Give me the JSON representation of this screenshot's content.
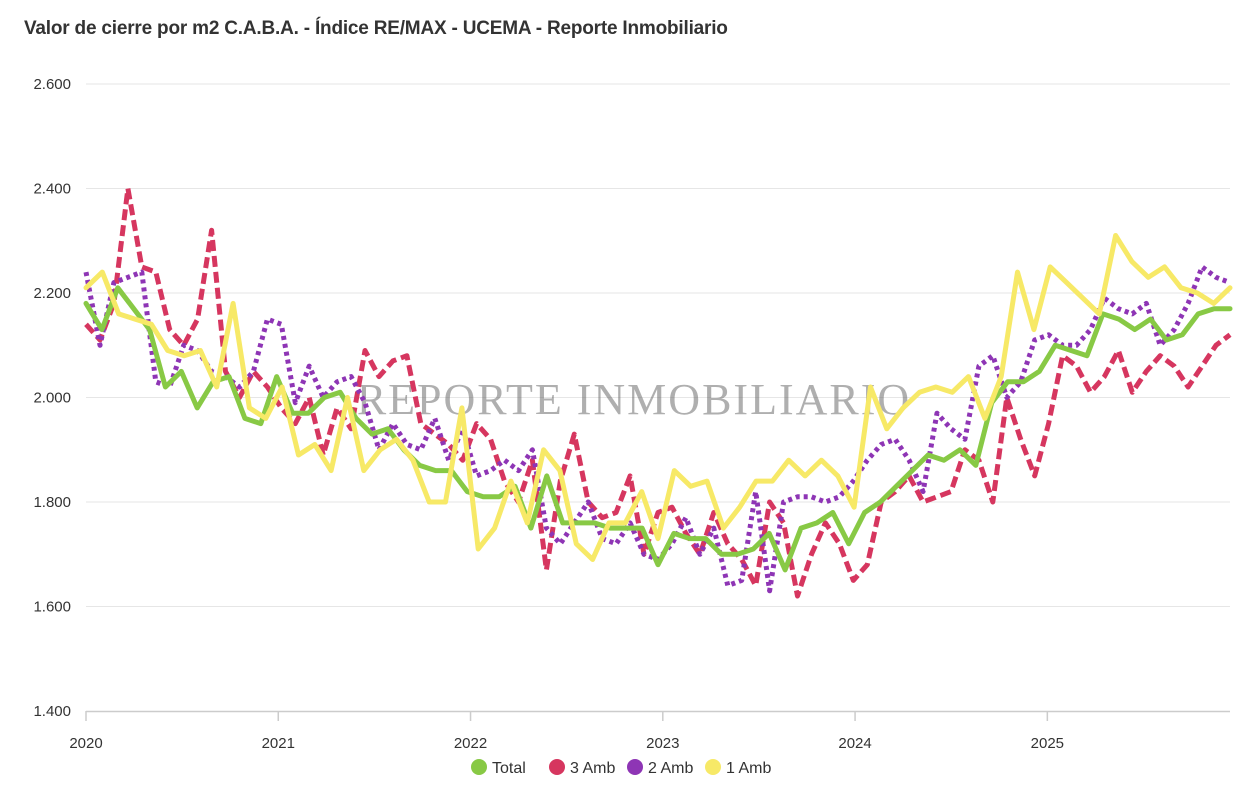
{
  "chart_data": {
    "type": "line",
    "title": "Valor de cierre por m2 C.A.B.A. - Índice RE/MAX - UCEMA - Reporte Inmobiliario",
    "watermark": "REPORTE INMOBILIARIO",
    "xlabel": "",
    "ylabel": "",
    "xlim": [
      2020,
      2025.95
    ],
    "ylim": [
      1400,
      2600
    ],
    "yticks": [
      {
        "value": 1400,
        "label": "1.400"
      },
      {
        "value": 1600,
        "label": "1.600"
      },
      {
        "value": 1800,
        "label": "1.800"
      },
      {
        "value": 2000,
        "label": "2.000"
      },
      {
        "value": 2200,
        "label": "2.200"
      },
      {
        "value": 2400,
        "label": "2.400"
      },
      {
        "value": 2600,
        "label": "2.600"
      }
    ],
    "xticks": [
      {
        "value": 2020,
        "label": "2020"
      },
      {
        "value": 2021,
        "label": "2021"
      },
      {
        "value": 2022,
        "label": "2022"
      },
      {
        "value": 2023,
        "label": "2023"
      },
      {
        "value": 2024,
        "label": "2024"
      },
      {
        "value": 2025,
        "label": "2025"
      }
    ],
    "grid": true,
    "legend_position": "bottom-center",
    "series": [
      {
        "name": "3 Amb",
        "color": "#D6365F",
        "style": "dashed",
        "values": [
          2140,
          2110,
          2180,
          2400,
          2250,
          2240,
          2130,
          2100,
          2150,
          2320,
          2050,
          2000,
          2050,
          2020,
          1980,
          1950,
          2000,
          1890,
          1980,
          1940,
          2090,
          2040,
          2070,
          2080,
          1950,
          1930,
          1910,
          1880,
          1950,
          1920,
          1840,
          1800,
          1880,
          1670,
          1840,
          1930,
          1800,
          1770,
          1780,
          1850,
          1700,
          1780,
          1790,
          1740,
          1700,
          1780,
          1720,
          1690,
          1640,
          1800,
          1760,
          1620,
          1700,
          1760,
          1720,
          1650,
          1680,
          1800,
          1820,
          1850,
          1800,
          1810,
          1820,
          1900,
          1880,
          1800,
          2000,
          1920,
          1850,
          1950,
          2080,
          2060,
          2010,
          2040,
          2090,
          2010,
          2050,
          2080,
          2060,
          2020,
          2060,
          2100,
          2120
        ]
      },
      {
        "name": "2 Amb",
        "color": "#8E35B5",
        "style": "dotted",
        "values": [
          2240,
          2100,
          2220,
          2230,
          2240,
          2030,
          2020,
          2100,
          2090,
          2050,
          2040,
          2020,
          2050,
          2150,
          2140,
          1990,
          2060,
          2000,
          2030,
          2040,
          1990,
          1900,
          1950,
          1910,
          1900,
          1960,
          1880,
          1940,
          1850,
          1860,
          1880,
          1860,
          1900,
          1750,
          1720,
          1760,
          1800,
          1730,
          1720,
          1760,
          1700,
          1690,
          1720,
          1770,
          1700,
          1750,
          1640,
          1650,
          1820,
          1630,
          1800,
          1810,
          1810,
          1800,
          1810,
          1840,
          1880,
          1910,
          1920,
          1880,
          1820,
          1970,
          1940,
          1920,
          2060,
          2080,
          2000,
          2030,
          2110,
          2120,
          2100,
          2100,
          2130,
          2190,
          2170,
          2160,
          2180,
          2100,
          2130,
          2180,
          2250,
          2230,
          2220
        ]
      },
      {
        "name": "Total",
        "color": "#88C945",
        "style": "solid",
        "values": [
          2180,
          2130,
          2210,
          2170,
          2130,
          2020,
          2050,
          1980,
          2030,
          2040,
          1960,
          1950,
          2040,
          1970,
          1970,
          2000,
          2010,
          1960,
          1930,
          1940,
          1900,
          1870,
          1860,
          1860,
          1820,
          1810,
          1810,
          1830,
          1750,
          1850,
          1760,
          1760,
          1760,
          1750,
          1750,
          1750,
          1680,
          1740,
          1730,
          1730,
          1700,
          1700,
          1710,
          1740,
          1670,
          1750,
          1760,
          1780,
          1720,
          1780,
          1800,
          1830,
          1860,
          1890,
          1880,
          1900,
          1870,
          1990,
          2030,
          2030,
          2050,
          2100,
          2090,
          2080,
          2160,
          2150,
          2130,
          2150,
          2110,
          2120,
          2160,
          2170,
          2170
        ]
      },
      {
        "name": "1 Amb",
        "color": "#F7E967",
        "style": "solid",
        "values": [
          2210,
          2240,
          2160,
          2150,
          2140,
          2090,
          2080,
          2090,
          2020,
          2180,
          1980,
          1960,
          2020,
          1890,
          1910,
          1860,
          2000,
          1860,
          1900,
          1920,
          1880,
          1800,
          1800,
          1980,
          1710,
          1750,
          1840,
          1760,
          1900,
          1860,
          1720,
          1690,
          1760,
          1760,
          1820,
          1730,
          1860,
          1830,
          1840,
          1750,
          1790,
          1840,
          1840,
          1880,
          1850,
          1880,
          1850,
          1790,
          2020,
          1940,
          1980,
          2010,
          2020,
          2010,
          2040,
          1960,
          2040,
          2240,
          2130,
          2250,
          2220,
          2190,
          2160,
          2310,
          2260,
          2230,
          2250,
          2210,
          2200,
          2180,
          2210
        ]
      }
    ]
  }
}
